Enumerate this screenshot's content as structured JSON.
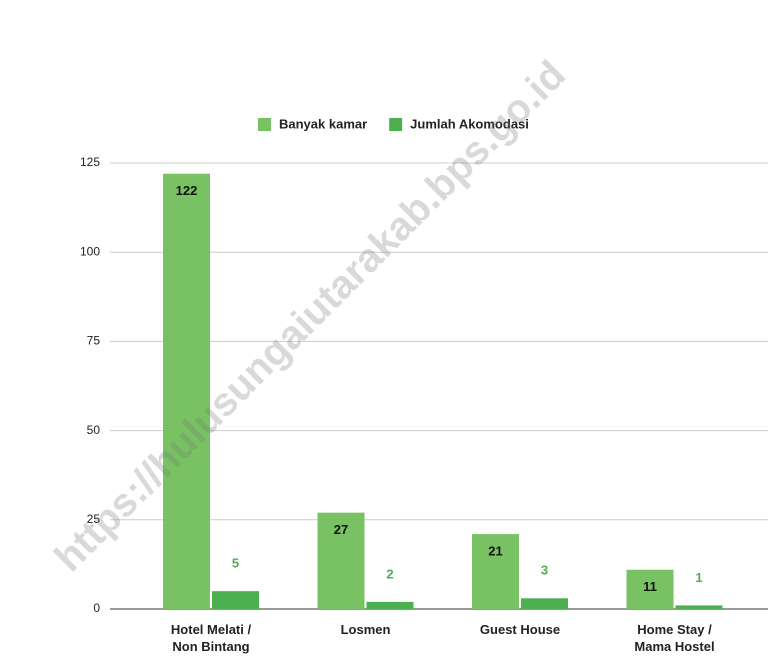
{
  "chart_data": {
    "type": "bar",
    "watermark": "https://hulusungaiutarakab.bps.go.id",
    "categories": [
      "Hotel Melati /\nNon Bintang",
      "Losmen",
      "Guest House",
      "Home Stay /\nMama Hostel"
    ],
    "series": [
      {
        "name": "Banyak kamar",
        "color": "#79c263",
        "values": [
          122,
          27,
          21,
          11
        ]
      },
      {
        "name": "Jumlah Akomodasi",
        "color": "#4caf50",
        "values": [
          5,
          2,
          3,
          1
        ]
      }
    ],
    "ylim": [
      0,
      125
    ],
    "yticks": [
      0,
      25,
      50,
      75,
      100,
      125
    ],
    "grid": true,
    "legend": "top"
  }
}
